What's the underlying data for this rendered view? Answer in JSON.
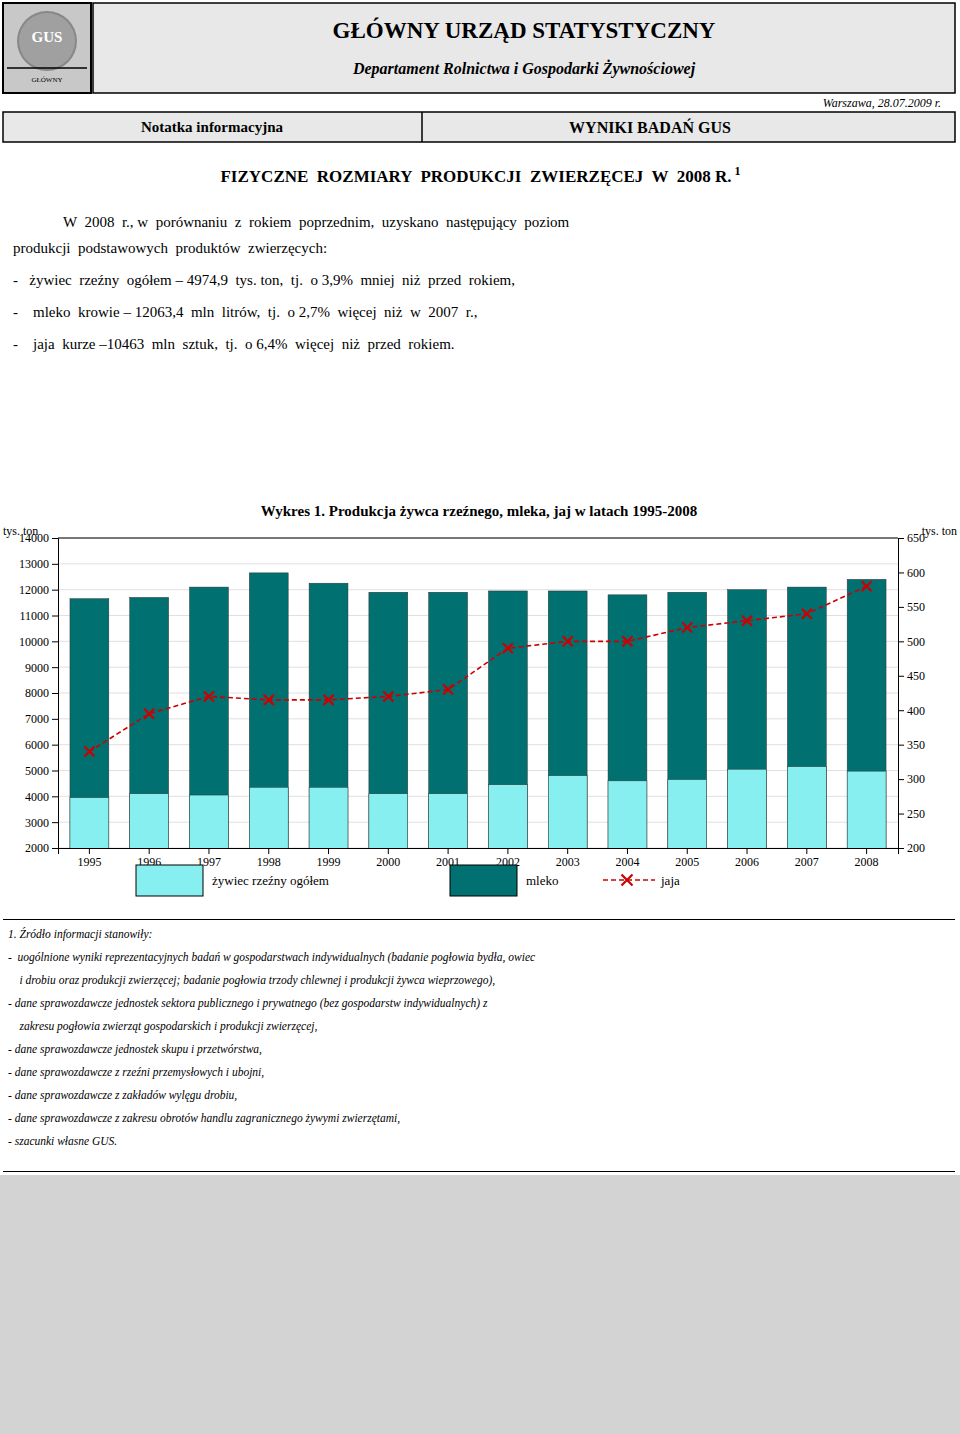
{
  "header": {
    "logo": "GUS",
    "logo_caption": "GŁÓWNY",
    "title": "GŁÓWNY URZĄD STATYSTYCZNY",
    "subtitle": "Departament Rolnictwa i Gospodarki Żywnościowej",
    "date": "Warszawa, 28.07.2009 r.",
    "left": "Notatka informacyjna",
    "right": "WYNIKI BADAŃ GUS"
  },
  "body": {
    "title": "FIZYCZNE  ROZMIARY  PRODUKCJI  ZWIERZĘCEJ  W  2008 R.",
    "footnote_mark": "1",
    "lines": [
      "W  2008  r., w  porównaniu  z  rokiem  poprzednim,  uzyskano  następujący  poziom",
      "produkcji  podstawowych  produktów  zwierzęcych:",
      "-   żywiec  rzeźny  ogółem – 4974,9  tys. ton,  tj.  o 3,9%  mniej  niż  przed  rokiem,",
      "-    mleko  krowie – 12063,4  mln  litrów,  tj.  o 2,7%  więcej  niż  w  2007  r.,",
      "-    jaja  kurze –10463  mln  sztuk,  tj.  o 6,4%  więcej  niż  przed  rokiem."
    ]
  },
  "footnotes": {
    "title": "1. Źródło informacji stanowiły:",
    "lines": [
      "-  uogólnione wyniki reprezentacyjnych badań w gospodarstwach indywidualnych (badanie pogłowia bydła, owiec",
      "    i drobiu oraz produkcji zwierzęcej; badanie pogłowia trzody chlewnej i produkcji żywca wieprzowego),",
      "- dane sprawozdawcze jednostek sektora publicznego i prywatnego (bez gospodarstw indywidualnych) z",
      "    zakresu pogłowia zwierząt gospodarskich i produkcji zwierzęcej,",
      "- dane sprawozdawcze jednostek skupu i przetwórstwa,",
      "- dane sprawozdawcze z rzeźni przemysłowych i ubojni,",
      "- dane sprawozdawcze z zakładów wylęgu drobiu,",
      "- dane sprawozdawcze z zakresu obrotów handlu zagranicznego żywymi zwierzętami,",
      "- szacunki własne GUS."
    ]
  },
  "chart_data": {
    "type": "bar",
    "title": "Wykres 1. Produkcja żywca rzeźnego, mleka, jaj w latach 1995-2008",
    "ylabel": "tys. ton",
    "y2label": "tys. ton",
    "categories": [
      "1995",
      "1996",
      "1997",
      "1998",
      "1999",
      "2000",
      "2001",
      "2002",
      "2003",
      "2004",
      "2005",
      "2006",
      "2007",
      "2008"
    ],
    "series": [
      {
        "name": "żywiec rzeźny ogółem",
        "type": "bar",
        "color": "#87EFEF",
        "values": [
          3950,
          4100,
          4050,
          4350,
          4350,
          4100,
          4100,
          4450,
          4800,
          4600,
          4650,
          5050,
          5150,
          4975
        ]
      },
      {
        "name": "mleko",
        "type": "bar",
        "color": "#007070",
        "values": [
          11650,
          11700,
          12100,
          12650,
          12250,
          11900,
          11900,
          11950,
          11950,
          11800,
          11900,
          12000,
          12100,
          12400
        ]
      },
      {
        "name": "jaja",
        "type": "line",
        "axis": "y2",
        "color": "#CC0000",
        "marker": "x",
        "line_style": "dashed",
        "values": [
          340,
          395,
          420,
          415,
          415,
          420,
          430,
          490,
          500,
          500,
          520,
          530,
          540,
          580
        ]
      }
    ],
    "ylim": [
      2000,
      14000
    ],
    "yticks": [
      2000,
      3000,
      4000,
      5000,
      6000,
      7000,
      8000,
      9000,
      10000,
      11000,
      12000,
      13000,
      14000
    ],
    "y2lim": [
      200,
      650
    ],
    "y2ticks": [
      200,
      250,
      300,
      350,
      400,
      450,
      500,
      550,
      600,
      650
    ],
    "grid": true,
    "legend": "bottom"
  }
}
